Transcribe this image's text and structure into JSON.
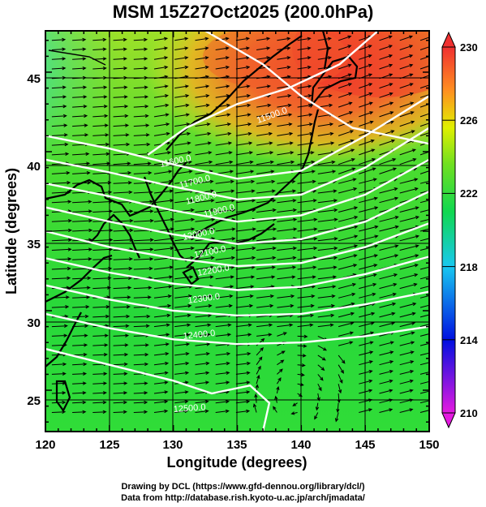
{
  "title": "MSM 15Z27Oct2025 (200.0hPa)",
  "xlabel": "Longitude (degrees)",
  "ylabel": "Latitude  (degrees)",
  "credit_line1": "Drawing by DCL (https://www.gfd-dennou.org/library/dcl/)",
  "credit_line2": "Data from http://database.rish.kyoto-u.ac.jp/arch/jmadata/",
  "chart_data": {
    "type": "heatmap",
    "description_fields": "temperature shading (K), geopotential height contours (m), wind vectors",
    "xlim": [
      120,
      150
    ],
    "ylim": [
      22.4,
      47.6
    ],
    "x_ticks": [
      120,
      125,
      130,
      135,
      140,
      145,
      150
    ],
    "x_tick_labels": [
      "120",
      "125",
      "130",
      "135",
      "140",
      "145",
      "150"
    ],
    "y_ticks": [
      25,
      30,
      35,
      40,
      45
    ],
    "y_tick_labels": [
      "25",
      "30",
      "35",
      "40",
      "45"
    ],
    "grid": true,
    "colorbar": {
      "min": 210,
      "max": 230,
      "ticks": [
        210,
        214,
        218,
        222,
        226,
        230
      ],
      "tick_labels": [
        "210",
        "214",
        "218",
        "222",
        "226",
        "230"
      ],
      "colors": [
        "#e41ae0",
        "#0010e0",
        "#18c8f0",
        "#10d850",
        "#70e020",
        "#e0f000",
        "#ff9020",
        "#f03030"
      ]
    },
    "contour_labels": [
      "11500.0",
      "11600.0",
      "11700.0",
      "11800.0",
      "11900.0",
      "12000.0",
      "12100.0",
      "12200.0",
      "12300.0",
      "12400.0",
      "12500.0"
    ],
    "contours": [
      {
        "level": 11500,
        "points": [
          [
            132.5,
            47.6
          ],
          [
            137,
            45.5
          ],
          [
            140,
            43.5
          ],
          [
            144,
            41.5
          ],
          [
            150,
            40.5
          ]
        ]
      },
      {
        "level": 11600,
        "points": [
          [
            128,
            39.8
          ],
          [
            131,
            41.5
          ],
          [
            135,
            43
          ],
          [
            139,
            44
          ],
          [
            143,
            45.5
          ],
          [
            146,
            47.6
          ]
        ]
      },
      {
        "level": 11700,
        "points": [
          [
            120,
            41
          ],
          [
            125,
            40.2
          ],
          [
            130,
            39.2
          ],
          [
            135,
            38.3
          ],
          [
            140,
            38.8
          ],
          [
            145,
            41
          ],
          [
            150,
            43.5
          ]
        ]
      },
      {
        "level": 11800,
        "points": [
          [
            120,
            39.5
          ],
          [
            125,
            38.7
          ],
          [
            130,
            37.8
          ],
          [
            135,
            37
          ],
          [
            140,
            37.3
          ],
          [
            145,
            39
          ],
          [
            150,
            41.5
          ]
        ]
      },
      {
        "level": 11900,
        "points": [
          [
            120,
            38
          ],
          [
            125,
            37.2
          ],
          [
            130,
            36.3
          ],
          [
            135,
            35.6
          ],
          [
            140,
            36
          ],
          [
            145,
            37.3
          ],
          [
            150,
            39.5
          ]
        ]
      },
      {
        "level": 12000,
        "points": [
          [
            120,
            36.5
          ],
          [
            125,
            35.6
          ],
          [
            130,
            34.8
          ],
          [
            135,
            34.2
          ],
          [
            140,
            34.5
          ],
          [
            145,
            35.6
          ],
          [
            150,
            37.5
          ]
        ]
      },
      {
        "level": 12100,
        "points": [
          [
            120,
            35
          ],
          [
            125,
            34
          ],
          [
            130,
            33.3
          ],
          [
            135,
            32.8
          ],
          [
            140,
            33
          ],
          [
            145,
            34
          ],
          [
            150,
            35.5
          ]
        ]
      },
      {
        "level": 12200,
        "points": [
          [
            120,
            33.3
          ],
          [
            125,
            32.4
          ],
          [
            130,
            31.7
          ],
          [
            135,
            31.3
          ],
          [
            140,
            31.5
          ],
          [
            145,
            32.3
          ],
          [
            150,
            33.4
          ]
        ]
      },
      {
        "level": 12300,
        "points": [
          [
            120,
            31.6
          ],
          [
            125,
            30.7
          ],
          [
            130,
            30
          ],
          [
            135,
            29.7
          ],
          [
            140,
            29.8
          ],
          [
            145,
            30.4
          ],
          [
            150,
            31.2
          ]
        ]
      },
      {
        "level": 12400,
        "points": [
          [
            120,
            29.8
          ],
          [
            125,
            28.9
          ],
          [
            130,
            28.2
          ],
          [
            135,
            27.9
          ],
          [
            140,
            28
          ],
          [
            145,
            28.4
          ],
          [
            150,
            29
          ]
        ]
      },
      {
        "level": 12500,
        "points": [
          [
            120,
            27.6
          ],
          [
            125,
            26.6
          ],
          [
            130,
            25.6
          ],
          [
            133,
            24.8
          ],
          [
            136,
            25.3
          ],
          [
            137.5,
            24.2
          ],
          [
            137,
            22.4
          ]
        ]
      }
    ],
    "wind_vectors": "westerly flow, strongest around 30-40N, anticyclonic circulation near 140E,25N"
  }
}
